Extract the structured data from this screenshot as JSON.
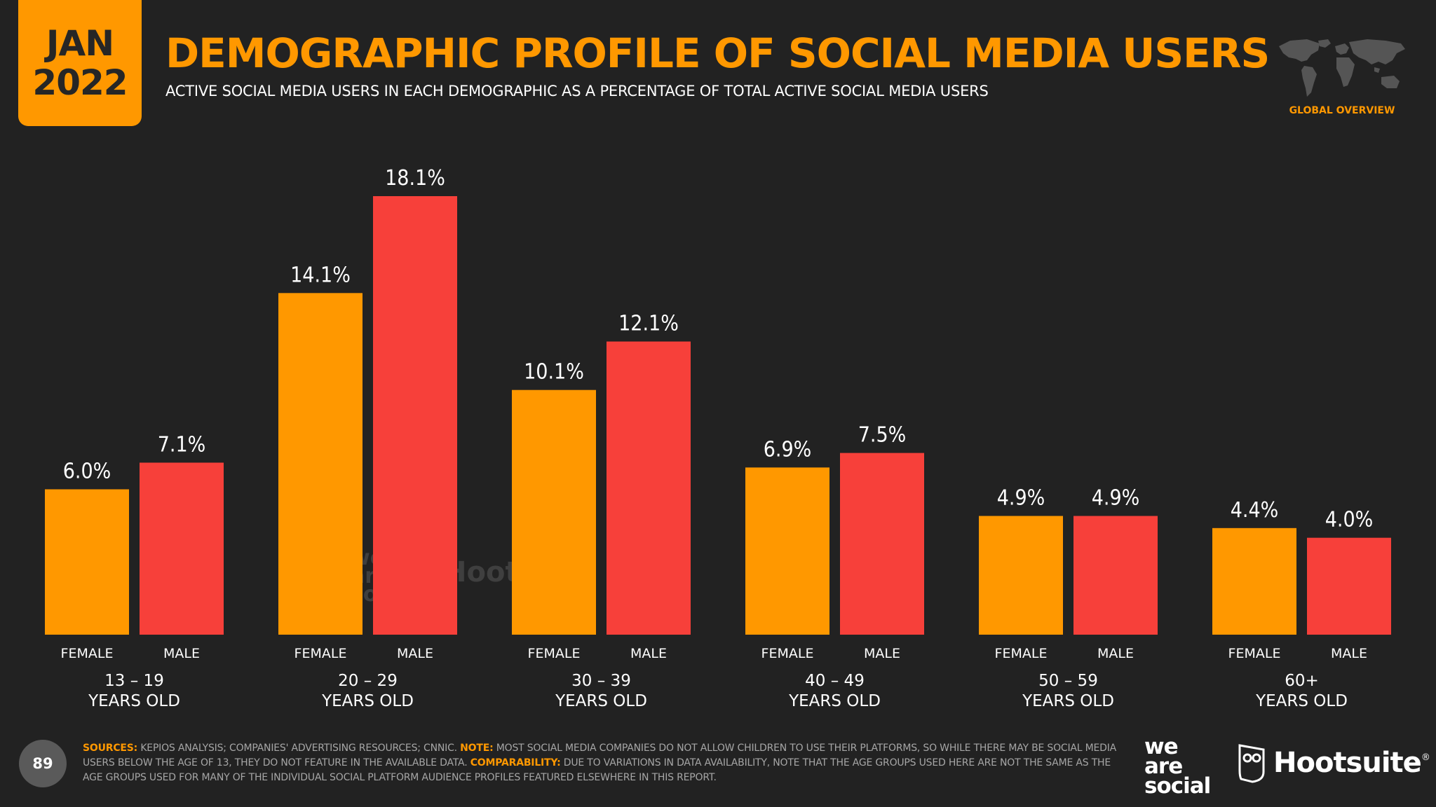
{
  "header": {
    "date_month": "JAN",
    "date_year": "2022",
    "title": "DEMOGRAPHIC PROFILE OF SOCIAL MEDIA USERS",
    "subtitle": "ACTIVE SOCIAL MEDIA USERS IN EACH DEMOGRAPHIC AS A PERCENTAGE OF TOTAL ACTIVE SOCIAL MEDIA USERS",
    "section_label": "GLOBAL OVERVIEW"
  },
  "chart_data": {
    "type": "bar",
    "categories": [
      {
        "line1": "13 – 19",
        "line2": "YEARS OLD"
      },
      {
        "line1": "20 – 29",
        "line2": "YEARS OLD"
      },
      {
        "line1": "30 – 39",
        "line2": "YEARS OLD"
      },
      {
        "line1": "40 – 49",
        "line2": "YEARS OLD"
      },
      {
        "line1": "50 – 59",
        "line2": "YEARS OLD"
      },
      {
        "line1": "60+",
        "line2": "YEARS OLD"
      }
    ],
    "series": [
      {
        "name": "FEMALE",
        "color": "#ff9800",
        "values": [
          6.0,
          14.1,
          10.1,
          6.9,
          4.9,
          4.4
        ],
        "labels": [
          "6.0%",
          "14.1%",
          "10.1%",
          "6.9%",
          "4.9%",
          "4.4%"
        ]
      },
      {
        "name": "MALE",
        "color": "#f7403a",
        "values": [
          7.1,
          18.1,
          12.1,
          7.5,
          4.9,
          4.0
        ],
        "labels": [
          "7.1%",
          "18.1%",
          "12.1%",
          "7.5%",
          "4.9%",
          "4.0%"
        ]
      }
    ],
    "ylim": [
      0,
      18.1
    ],
    "grid": false
  },
  "footer": {
    "sources_label": "SOURCES:",
    "sources_text": " KEPIOS ANALYSIS; COMPANIES' ADVERTISING RESOURCES; CNNIC. ",
    "note_label": "NOTE:",
    "note_text": " MOST SOCIAL MEDIA COMPANIES DO NOT ALLOW CHILDREN TO USE THEIR PLATFORMS, SO WHILE THERE MAY BE SOCIAL MEDIA USERS BELOW THE AGE OF 13, THEY DO NOT FEATURE IN THE AVAILABLE DATA. ",
    "comparability_label": "COMPARABILITY:",
    "comparability_text": " DUE TO VARIATIONS IN DATA AVAILABILITY, NOTE THAT THE AGE GROUPS USED HERE ARE NOT THE SAME AS THE AGE GROUPS USED FOR MANY OF THE INDIVIDUAL SOCIAL PLATFORM AUDIENCE PROFILES FEATURED ELSEWHERE IN THIS REPORT.",
    "page_number": "89"
  },
  "branding": {
    "was_line1": "we",
    "was_line2": "are",
    "was_line3": "social",
    "hootsuite": "Hootsuite",
    "registered": "®",
    "owl_icon": "owl-icon"
  },
  "colors": {
    "background": "#222222",
    "accent": "#ff9800",
    "female": "#ff9800",
    "male": "#f7403a"
  }
}
